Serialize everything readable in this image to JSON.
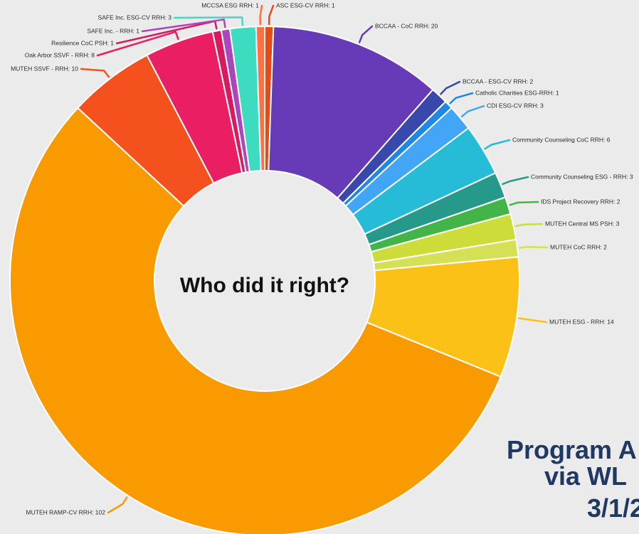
{
  "chart_data": {
    "type": "pie",
    "variant": "donut",
    "center_text": "Who did it right?",
    "slices": [
      {
        "label": "ASC ESG-CV RRH: 1",
        "value": 1,
        "color": "#e64a19"
      },
      {
        "label": "BCCAA - CoC RRH: 20",
        "value": 20,
        "color": "#673ab7"
      },
      {
        "label": "BCCAA - ESG-CV RRH: 2",
        "value": 2,
        "color": "#3949ab"
      },
      {
        "label": "Catholic Charities ESG-RRH: 1",
        "value": 1,
        "color": "#1e88e5"
      },
      {
        "label": "CDI ESG-CV RRH: 3",
        "value": 3,
        "color": "#42a5f5"
      },
      {
        "label": "Community Counseling CoC RRH: 6",
        "value": 6,
        "color": "#26bcd7"
      },
      {
        "label": "Community Counseling ESG - RRH: 3",
        "value": 3,
        "color": "#26998b"
      },
      {
        "label": "IDS Project Recovery RRH: 2",
        "value": 2,
        "color": "#43b548"
      },
      {
        "label": "MUTEH Central MS PSH: 3",
        "value": 3,
        "color": "#cddc39"
      },
      {
        "label": "MUTEH CoC RRH: 2",
        "value": 2,
        "color": "#d4e157"
      },
      {
        "label": "MUTEH ESG - RRH: 14",
        "value": 14,
        "color": "#fbc117"
      },
      {
        "label": "MUTEH RAMP-CV RRH: 102",
        "value": 102,
        "color": "#f89a00"
      },
      {
        "label": "MUTEH SSVF - RRH: 10",
        "value": 10,
        "color": "#f4511e"
      },
      {
        "label": "Oak Arbor SSVF - RRH: 8",
        "value": 8,
        "color": "#e91e63"
      },
      {
        "label": "Resilience CoC PSH: 1",
        "value": 1,
        "color": "#d81b60"
      },
      {
        "label": "SAFE Inc. - RRH: 1",
        "value": 1,
        "color": "#ab47bc"
      },
      {
        "label": "SAFE Inc. ESG-CV RRH: 3",
        "value": 3,
        "color": "#3ddbc0"
      },
      {
        "label": "MCCSA ESG RRH: 1",
        "value": 1,
        "color": "#ff7043"
      }
    ]
  },
  "side_title": {
    "line1": "Program A",
    "line2": "via WL",
    "line3": "3/1/2"
  }
}
